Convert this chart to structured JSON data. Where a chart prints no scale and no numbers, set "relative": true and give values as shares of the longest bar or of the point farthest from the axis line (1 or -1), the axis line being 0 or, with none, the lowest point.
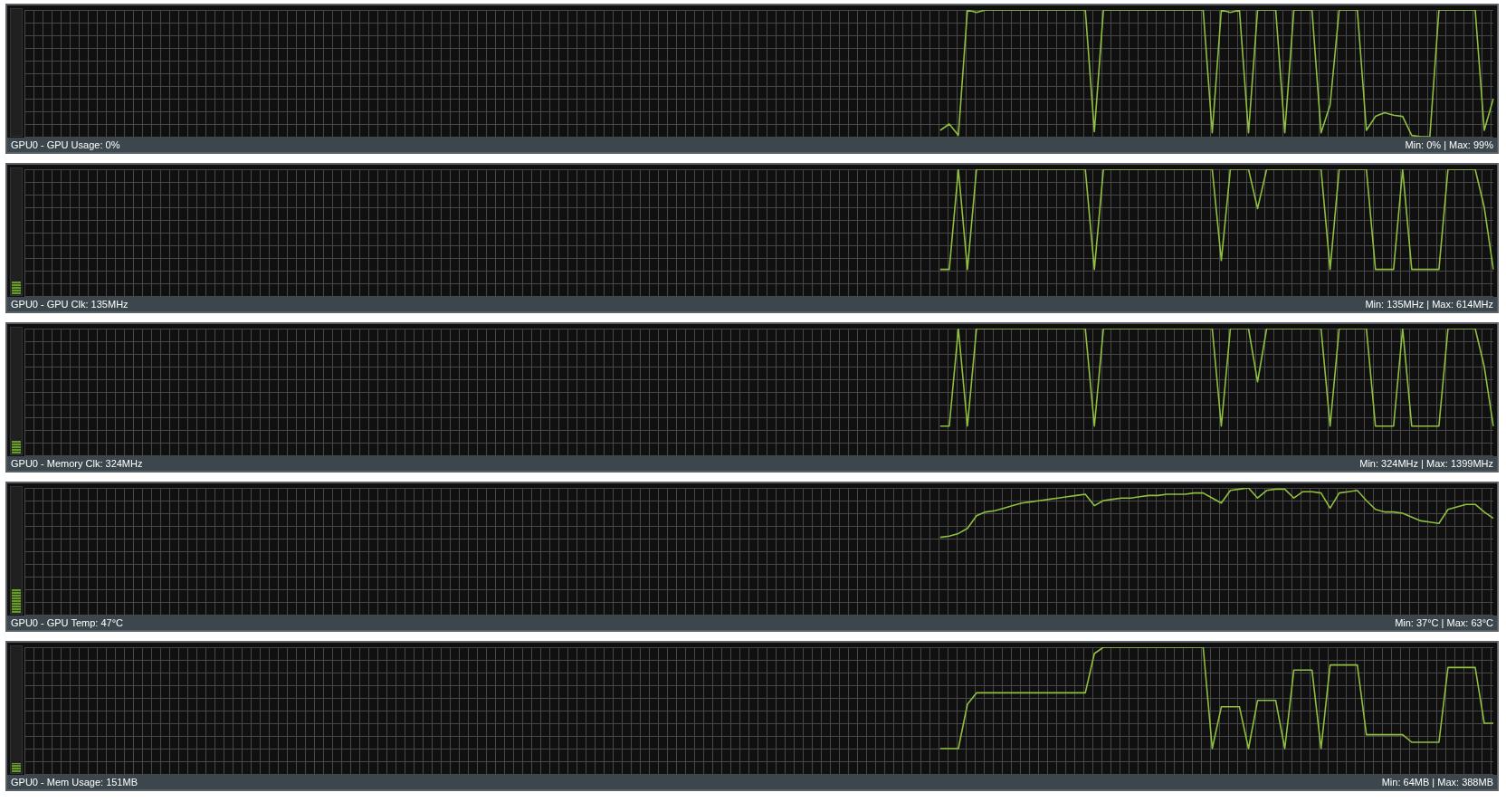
{
  "chart_data": [
    {
      "type": "line",
      "title": "GPU0 - GPU Usage: 0%",
      "annotations": [
        "Min: 0% | Max: 99%"
      ],
      "relative": true,
      "grid": true,
      "legend": false,
      "marker": "none",
      "line_style": "solid",
      "categories": [
        null,
        null,
        null,
        null,
        null,
        null,
        null,
        null,
        null,
        null,
        null,
        null,
        null,
        null,
        null,
        null,
        null,
        null,
        null,
        null,
        null,
        null,
        null,
        null,
        null,
        null,
        null,
        null,
        null,
        null,
        null,
        null,
        null,
        null,
        null,
        null,
        null,
        null,
        null,
        null,
        null,
        null,
        null,
        null,
        null,
        null,
        null,
        null,
        null,
        null,
        null,
        null,
        null,
        null,
        null,
        null,
        null,
        null,
        null,
        null,
        null,
        null,
        null,
        null,
        null,
        null,
        null,
        null,
        null,
        null,
        null,
        null,
        null,
        null,
        null,
        null,
        null,
        null,
        null,
        null,
        null,
        null,
        null,
        null,
        null,
        null,
        null,
        null,
        null,
        null,
        null,
        null,
        null,
        null,
        null,
        null,
        null,
        null,
        null,
        null,
        null,
        null,
        null,
        null,
        null,
        null,
        null,
        null,
        null,
        null,
        null,
        null,
        null,
        null,
        null,
        null,
        null,
        null,
        null,
        null,
        null,
        null,
        null,
        null,
        null,
        null,
        null,
        null,
        null,
        null,
        null,
        null,
        null,
        null,
        null,
        null,
        null,
        null,
        null,
        null,
        null,
        null,
        null,
        null,
        null,
        null,
        null,
        null,
        null,
        null,
        null,
        null,
        null,
        null,
        null,
        null,
        null,
        null,
        null,
        null,
        null,
        null,
        null
      ],
      "series": [
        {
          "color": "#8fbf3f",
          "values": [
            null,
            null,
            null,
            null,
            null,
            null,
            null,
            null,
            null,
            null,
            null,
            null,
            null,
            null,
            null,
            null,
            null,
            null,
            null,
            null,
            null,
            null,
            null,
            null,
            null,
            null,
            null,
            null,
            null,
            null,
            null,
            null,
            null,
            null,
            null,
            null,
            null,
            null,
            null,
            null,
            null,
            null,
            null,
            null,
            null,
            null,
            null,
            null,
            null,
            null,
            null,
            null,
            null,
            null,
            null,
            null,
            null,
            null,
            null,
            null,
            null,
            null,
            null,
            null,
            null,
            null,
            null,
            null,
            null,
            null,
            null,
            null,
            null,
            null,
            null,
            null,
            null,
            null,
            null,
            null,
            null,
            null,
            null,
            null,
            null,
            null,
            null,
            null,
            null,
            null,
            null,
            null,
            null,
            null,
            null,
            null,
            null,
            null,
            null,
            null,
            null,
            0.05,
            0.1,
            0.01,
            1,
            0.98,
            1,
            1,
            1,
            1,
            1,
            1,
            1,
            1,
            1,
            1,
            1,
            1,
            0.04,
            1,
            1,
            1,
            1,
            1,
            1,
            1,
            1,
            1,
            1,
            1,
            1,
            0.03,
            1,
            0.98,
            1,
            0.03,
            1,
            1,
            1,
            0.03,
            1,
            1,
            1,
            0.03,
            0.25,
            1,
            1,
            1,
            0.05,
            0.16,
            0.19,
            0.17,
            0.16,
            0.01,
            0,
            0,
            1,
            1,
            1,
            1,
            1,
            0.05,
            0.3
          ]
        }
      ]
    },
    {
      "type": "line",
      "title": "GPU0 - GPU Clk: 135MHz",
      "annotations": [
        "Min: 135MHz | Max: 614MHz"
      ],
      "relative": true,
      "grid": true,
      "legend": false,
      "marker": "none",
      "line_style": "solid",
      "categories": [
        null,
        null,
        null,
        null,
        null,
        null,
        null,
        null,
        null,
        null,
        null,
        null,
        null,
        null,
        null,
        null,
        null,
        null,
        null,
        null,
        null,
        null,
        null,
        null,
        null,
        null,
        null,
        null,
        null,
        null,
        null,
        null,
        null,
        null,
        null,
        null,
        null,
        null,
        null,
        null,
        null,
        null,
        null,
        null,
        null,
        null,
        null,
        null,
        null,
        null,
        null,
        null,
        null,
        null,
        null,
        null,
        null,
        null,
        null,
        null,
        null,
        null,
        null,
        null,
        null,
        null,
        null,
        null,
        null,
        null,
        null,
        null,
        null,
        null,
        null,
        null,
        null,
        null,
        null,
        null,
        null,
        null,
        null,
        null,
        null,
        null,
        null,
        null,
        null,
        null,
        null,
        null,
        null,
        null,
        null,
        null,
        null,
        null,
        null,
        null,
        null,
        null,
        null,
        null,
        null,
        null,
        null,
        null,
        null,
        null,
        null,
        null,
        null,
        null,
        null,
        null,
        null,
        null,
        null,
        null,
        null,
        null,
        null,
        null,
        null,
        null,
        null,
        null,
        null,
        null,
        null,
        null,
        null,
        null,
        null,
        null,
        null,
        null,
        null,
        null,
        null,
        null,
        null,
        null,
        null,
        null,
        null,
        null,
        null,
        null,
        null,
        null,
        null,
        null,
        null,
        null,
        null,
        null,
        null,
        null,
        null,
        null,
        null
      ],
      "series": [
        {
          "color": "#8fbf3f",
          "values": [
            null,
            null,
            null,
            null,
            null,
            null,
            null,
            null,
            null,
            null,
            null,
            null,
            null,
            null,
            null,
            null,
            null,
            null,
            null,
            null,
            null,
            null,
            null,
            null,
            null,
            null,
            null,
            null,
            null,
            null,
            null,
            null,
            null,
            null,
            null,
            null,
            null,
            null,
            null,
            null,
            null,
            null,
            null,
            null,
            null,
            null,
            null,
            null,
            null,
            null,
            null,
            null,
            null,
            null,
            null,
            null,
            null,
            null,
            null,
            null,
            null,
            null,
            null,
            null,
            null,
            null,
            null,
            null,
            null,
            null,
            null,
            null,
            null,
            null,
            null,
            null,
            null,
            null,
            null,
            null,
            null,
            null,
            null,
            null,
            null,
            null,
            null,
            null,
            null,
            null,
            null,
            null,
            null,
            null,
            null,
            null,
            null,
            null,
            null,
            null,
            null,
            0.21,
            0.21,
            1,
            0.21,
            1,
            1,
            1,
            1,
            1,
            1,
            1,
            1,
            1,
            1,
            1,
            1,
            1,
            0.21,
            1,
            1,
            1,
            1,
            1,
            1,
            1,
            1,
            1,
            1,
            1,
            1,
            1,
            0.28,
            1,
            1,
            1,
            0.69,
            1,
            1,
            1,
            1,
            1,
            1,
            1,
            0.21,
            1,
            1,
            1,
            1,
            0.21,
            0.21,
            0.21,
            1,
            0.21,
            0.21,
            0.21,
            0.21,
            1,
            1,
            1,
            1,
            0.7,
            0.21
          ]
        }
      ]
    },
    {
      "type": "line",
      "title": "GPU0 - Memory Clk: 324MHz",
      "annotations": [
        "Min: 324MHz | Max: 1399MHz"
      ],
      "relative": true,
      "grid": true,
      "legend": false,
      "marker": "none",
      "line_style": "solid",
      "categories": [
        null,
        null,
        null,
        null,
        null,
        null,
        null,
        null,
        null,
        null,
        null,
        null,
        null,
        null,
        null,
        null,
        null,
        null,
        null,
        null,
        null,
        null,
        null,
        null,
        null,
        null,
        null,
        null,
        null,
        null,
        null,
        null,
        null,
        null,
        null,
        null,
        null,
        null,
        null,
        null,
        null,
        null,
        null,
        null,
        null,
        null,
        null,
        null,
        null,
        null,
        null,
        null,
        null,
        null,
        null,
        null,
        null,
        null,
        null,
        null,
        null,
        null,
        null,
        null,
        null,
        null,
        null,
        null,
        null,
        null,
        null,
        null,
        null,
        null,
        null,
        null,
        null,
        null,
        null,
        null,
        null,
        null,
        null,
        null,
        null,
        null,
        null,
        null,
        null,
        null,
        null,
        null,
        null,
        null,
        null,
        null,
        null,
        null,
        null,
        null,
        null,
        null,
        null,
        null,
        null,
        null,
        null,
        null,
        null,
        null,
        null,
        null,
        null,
        null,
        null,
        null,
        null,
        null,
        null,
        null,
        null,
        null,
        null,
        null,
        null,
        null,
        null,
        null,
        null,
        null,
        null,
        null,
        null,
        null,
        null,
        null,
        null,
        null,
        null,
        null,
        null,
        null,
        null,
        null,
        null,
        null,
        null,
        null,
        null,
        null,
        null,
        null,
        null,
        null,
        null,
        null,
        null,
        null,
        null,
        null,
        null,
        null,
        null
      ],
      "series": [
        {
          "color": "#8fbf3f",
          "values": [
            null,
            null,
            null,
            null,
            null,
            null,
            null,
            null,
            null,
            null,
            null,
            null,
            null,
            null,
            null,
            null,
            null,
            null,
            null,
            null,
            null,
            null,
            null,
            null,
            null,
            null,
            null,
            null,
            null,
            null,
            null,
            null,
            null,
            null,
            null,
            null,
            null,
            null,
            null,
            null,
            null,
            null,
            null,
            null,
            null,
            null,
            null,
            null,
            null,
            null,
            null,
            null,
            null,
            null,
            null,
            null,
            null,
            null,
            null,
            null,
            null,
            null,
            null,
            null,
            null,
            null,
            null,
            null,
            null,
            null,
            null,
            null,
            null,
            null,
            null,
            null,
            null,
            null,
            null,
            null,
            null,
            null,
            null,
            null,
            null,
            null,
            null,
            null,
            null,
            null,
            null,
            null,
            null,
            null,
            null,
            null,
            null,
            null,
            null,
            null,
            null,
            0.23,
            0.23,
            1,
            0.23,
            1,
            1,
            1,
            1,
            1,
            1,
            1,
            1,
            1,
            1,
            1,
            1,
            1,
            0.23,
            1,
            1,
            1,
            1,
            1,
            1,
            1,
            1,
            1,
            1,
            1,
            1,
            1,
            0.23,
            1,
            1,
            1,
            0.58,
            1,
            1,
            1,
            1,
            1,
            1,
            1,
            0.23,
            1,
            1,
            1,
            1,
            0.23,
            0.23,
            0.23,
            1,
            0.23,
            0.23,
            0.23,
            0.23,
            1,
            1,
            1,
            1,
            0.7,
            0.23
          ]
        }
      ]
    },
    {
      "type": "line",
      "title": "GPU0 - GPU Temp: 47°C",
      "annotations": [
        "Min: 37°C | Max: 63°C"
      ],
      "relative": true,
      "grid": true,
      "legend": false,
      "marker": "none",
      "line_style": "solid",
      "categories": [
        null,
        null,
        null,
        null,
        null,
        null,
        null,
        null,
        null,
        null,
        null,
        null,
        null,
        null,
        null,
        null,
        null,
        null,
        null,
        null,
        null,
        null,
        null,
        null,
        null,
        null,
        null,
        null,
        null,
        null,
        null,
        null,
        null,
        null,
        null,
        null,
        null,
        null,
        null,
        null,
        null,
        null,
        null,
        null,
        null,
        null,
        null,
        null,
        null,
        null,
        null,
        null,
        null,
        null,
        null,
        null,
        null,
        null,
        null,
        null,
        null,
        null,
        null,
        null,
        null,
        null,
        null,
        null,
        null,
        null,
        null,
        null,
        null,
        null,
        null,
        null,
        null,
        null,
        null,
        null,
        null,
        null,
        null,
        null,
        null,
        null,
        null,
        null,
        null,
        null,
        null,
        null,
        null,
        null,
        null,
        null,
        null,
        null,
        null,
        null,
        null,
        null,
        null,
        null,
        null,
        null,
        null,
        null,
        null,
        null,
        null,
        null,
        null,
        null,
        null,
        null,
        null,
        null,
        null,
        null,
        null,
        null,
        null,
        null,
        null,
        null,
        null,
        null,
        null,
        null,
        null,
        null,
        null,
        null,
        null,
        null,
        null,
        null,
        null,
        null,
        null,
        null,
        null,
        null,
        null,
        null,
        null,
        null,
        null,
        null,
        null,
        null,
        null,
        null,
        null,
        null,
        null,
        null,
        null,
        null,
        null,
        null,
        null
      ],
      "series": [
        {
          "color": "#8fbf3f",
          "values": [
            null,
            null,
            null,
            null,
            null,
            null,
            null,
            null,
            null,
            null,
            null,
            null,
            null,
            null,
            null,
            null,
            null,
            null,
            null,
            null,
            null,
            null,
            null,
            null,
            null,
            null,
            null,
            null,
            null,
            null,
            null,
            null,
            null,
            null,
            null,
            null,
            null,
            null,
            null,
            null,
            null,
            null,
            null,
            null,
            null,
            null,
            null,
            null,
            null,
            null,
            null,
            null,
            null,
            null,
            null,
            null,
            null,
            null,
            null,
            null,
            null,
            null,
            null,
            null,
            null,
            null,
            null,
            null,
            null,
            null,
            null,
            null,
            null,
            null,
            null,
            null,
            null,
            null,
            null,
            null,
            null,
            null,
            null,
            null,
            null,
            null,
            null,
            null,
            null,
            null,
            null,
            null,
            null,
            null,
            null,
            null,
            null,
            null,
            null,
            null,
            null,
            0.61,
            0.62,
            0.64,
            0.68,
            0.78,
            0.81,
            0.82,
            0.84,
            0.86,
            0.88,
            0.89,
            0.9,
            0.91,
            0.92,
            0.93,
            0.94,
            0.95,
            0.86,
            0.9,
            0.91,
            0.92,
            0.92,
            0.93,
            0.94,
            0.94,
            0.95,
            0.95,
            0.95,
            0.96,
            0.96,
            0.92,
            0.88,
            0.98,
            0.99,
            1,
            0.92,
            0.98,
            0.99,
            0.99,
            0.92,
            0.97,
            0.97,
            0.96,
            0.84,
            0.96,
            0.97,
            0.98,
            0.9,
            0.83,
            0.81,
            0.81,
            0.8,
            0.77,
            0.74,
            0.73,
            0.72,
            0.83,
            0.85,
            0.87,
            0.87,
            0.81,
            0.76
          ]
        }
      ]
    },
    {
      "type": "line",
      "title": "GPU0 - Mem Usage: 151MB",
      "annotations": [
        "Min: 64MB | Max: 388MB"
      ],
      "relative": true,
      "grid": true,
      "legend": false,
      "marker": "none",
      "line_style": "solid",
      "categories": [
        null,
        null,
        null,
        null,
        null,
        null,
        null,
        null,
        null,
        null,
        null,
        null,
        null,
        null,
        null,
        null,
        null,
        null,
        null,
        null,
        null,
        null,
        null,
        null,
        null,
        null,
        null,
        null,
        null,
        null,
        null,
        null,
        null,
        null,
        null,
        null,
        null,
        null,
        null,
        null,
        null,
        null,
        null,
        null,
        null,
        null,
        null,
        null,
        null,
        null,
        null,
        null,
        null,
        null,
        null,
        null,
        null,
        null,
        null,
        null,
        null,
        null,
        null,
        null,
        null,
        null,
        null,
        null,
        null,
        null,
        null,
        null,
        null,
        null,
        null,
        null,
        null,
        null,
        null,
        null,
        null,
        null,
        null,
        null,
        null,
        null,
        null,
        null,
        null,
        null,
        null,
        null,
        null,
        null,
        null,
        null,
        null,
        null,
        null,
        null,
        null,
        null,
        null,
        null,
        null,
        null,
        null,
        null,
        null,
        null,
        null,
        null,
        null,
        null,
        null,
        null,
        null,
        null,
        null,
        null,
        null,
        null,
        null,
        null,
        null,
        null,
        null,
        null,
        null,
        null,
        null,
        null,
        null,
        null,
        null,
        null,
        null,
        null,
        null,
        null,
        null,
        null,
        null,
        null,
        null,
        null,
        null,
        null,
        null,
        null,
        null,
        null,
        null,
        null,
        null,
        null,
        null,
        null,
        null,
        null,
        null,
        null,
        null
      ],
      "series": [
        {
          "color": "#8fbf3f",
          "values": [
            null,
            null,
            null,
            null,
            null,
            null,
            null,
            null,
            null,
            null,
            null,
            null,
            null,
            null,
            null,
            null,
            null,
            null,
            null,
            null,
            null,
            null,
            null,
            null,
            null,
            null,
            null,
            null,
            null,
            null,
            null,
            null,
            null,
            null,
            null,
            null,
            null,
            null,
            null,
            null,
            null,
            null,
            null,
            null,
            null,
            null,
            null,
            null,
            null,
            null,
            null,
            null,
            null,
            null,
            null,
            null,
            null,
            null,
            null,
            null,
            null,
            null,
            null,
            null,
            null,
            null,
            null,
            null,
            null,
            null,
            null,
            null,
            null,
            null,
            null,
            null,
            null,
            null,
            null,
            null,
            null,
            null,
            null,
            null,
            null,
            null,
            null,
            null,
            null,
            null,
            null,
            null,
            null,
            null,
            null,
            null,
            null,
            null,
            null,
            null,
            null,
            0.2,
            0.2,
            0.2,
            0.55,
            0.64,
            0.64,
            0.64,
            0.64,
            0.64,
            0.64,
            0.64,
            0.64,
            0.64,
            0.64,
            0.64,
            0.64,
            0.64,
            0.95,
            1,
            1,
            1,
            1,
            1,
            1,
            1,
            1,
            1,
            1,
            1,
            1,
            0.2,
            0.53,
            0.53,
            0.53,
            0.2,
            0.58,
            0.58,
            0.58,
            0.2,
            0.82,
            0.82,
            0.82,
            0.2,
            0.86,
            0.86,
            0.86,
            0.86,
            0.31,
            0.31,
            0.31,
            0.31,
            0.31,
            0.25,
            0.25,
            0.25,
            0.25,
            0.84,
            0.84,
            0.84,
            0.84,
            0.4,
            0.4
          ]
        }
      ]
    }
  ]
}
